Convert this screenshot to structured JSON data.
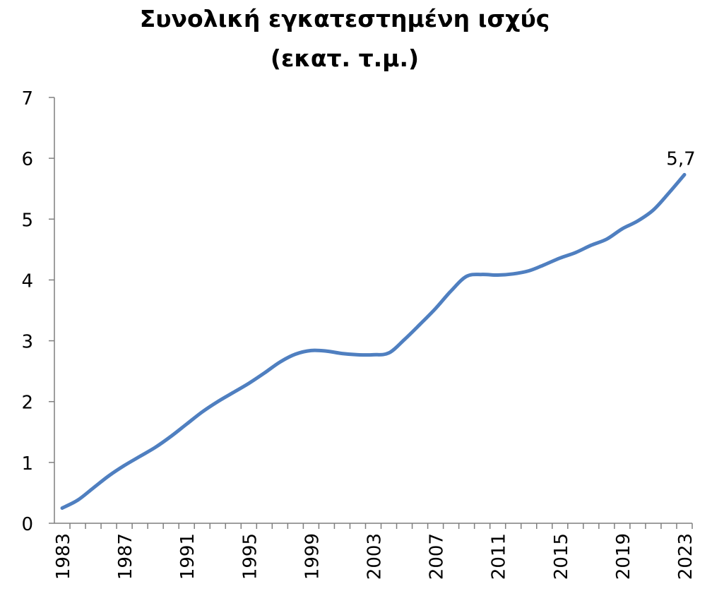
{
  "chart_data": {
    "type": "line",
    "title": [
      "Συνολική εγκατεστημένη ισχύς",
      "(εκατ. τ.μ.)"
    ],
    "x": [
      1983,
      1984,
      1985,
      1986,
      1987,
      1988,
      1989,
      1990,
      1991,
      1992,
      1993,
      1994,
      1995,
      1996,
      1997,
      1998,
      1999,
      2000,
      2001,
      2002,
      2003,
      2004,
      2005,
      2006,
      2007,
      2008,
      2009,
      2010,
      2011,
      2012,
      2013,
      2014,
      2015,
      2016,
      2017,
      2018,
      2019,
      2020,
      2021,
      2022,
      2023
    ],
    "series": [
      {
        "color": "#4f7fc0",
        "values": [
          0.25,
          0.38,
          0.58,
          0.78,
          0.95,
          1.1,
          1.25,
          1.43,
          1.63,
          1.83,
          2.0,
          2.15,
          2.3,
          2.47,
          2.65,
          2.78,
          2.84,
          2.83,
          2.79,
          2.77,
          2.77,
          2.8,
          3.02,
          3.27,
          3.53,
          3.82,
          4.06,
          4.09,
          4.08,
          4.1,
          4.15,
          4.25,
          4.36,
          4.45,
          4.57,
          4.67,
          4.84,
          4.97,
          5.15,
          5.43,
          5.73
        ],
        "value_labels": [
          null,
          null,
          null,
          null,
          null,
          null,
          null,
          null,
          null,
          null,
          null,
          null,
          null,
          null,
          null,
          null,
          null,
          null,
          null,
          null,
          null,
          null,
          null,
          null,
          null,
          null,
          null,
          null,
          null,
          null,
          null,
          null,
          null,
          null,
          null,
          null,
          null,
          null,
          null,
          null,
          "5,7"
        ]
      }
    ],
    "xlim": [
      1982.5,
      2023.5
    ],
    "xticks": [
      1983,
      1987,
      1991,
      1995,
      1999,
      2003,
      2007,
      2011,
      2015,
      2019,
      2023
    ],
    "ylim": [
      0,
      7
    ],
    "yticks": [
      0,
      1,
      2,
      3,
      4,
      5,
      6,
      7
    ]
  }
}
